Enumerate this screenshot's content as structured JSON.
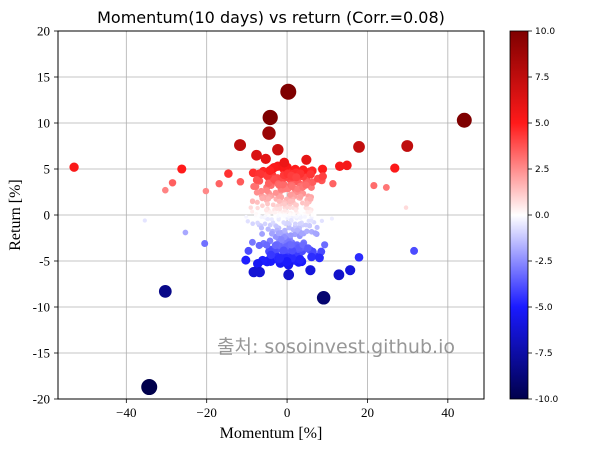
{
  "chart_data": {
    "type": "scatter",
    "title": "Momentum(10 days) vs return (Corr.=0.08)",
    "xlabel": "Momentum [%]",
    "ylabel": "Return [%]",
    "xlim": [
      -57,
      49
    ],
    "ylim": [
      -20,
      20
    ],
    "x_ticks": [
      -40,
      -20,
      0,
      20,
      40
    ],
    "x_tick_labels": [
      "−40",
      "−20",
      "0",
      "20",
      "40"
    ],
    "y_ticks": [
      -20,
      -15,
      -10,
      -5,
      0,
      5,
      10,
      15,
      20
    ],
    "y_tick_labels": [
      "-20",
      "-15",
      "-10",
      "-5",
      "0",
      "5",
      "10",
      "15",
      "20"
    ],
    "grid": true,
    "colormap": "seismic",
    "color_encoding": "return",
    "size_encoding": "absolute return",
    "colorbar": {
      "range": [
        -10,
        10
      ],
      "ticks": [
        10,
        7.5,
        5,
        2.5,
        0,
        -2.5,
        -5,
        -7.5,
        -10
      ],
      "tick_labels": [
        "10.0",
        "7.5",
        "5.0",
        "2.5",
        "0.0",
        "-2.5",
        "-5.0",
        "-7.5",
        "-10.0"
      ],
      "colors": {
        "low": "#00004c",
        "mid": "#ffffff",
        "high": "#7f0000"
      }
    },
    "watermark": "출처: sosoinvest.github.io",
    "points": [
      {
        "x": 0.3,
        "y": 13.4
      },
      {
        "x": -4.2,
        "y": 10.6
      },
      {
        "x": 44.1,
        "y": 10.3
      },
      {
        "x": -4.5,
        "y": 8.9
      },
      {
        "x": -11.7,
        "y": 7.6
      },
      {
        "x": -2.3,
        "y": 7.1
      },
      {
        "x": 17.9,
        "y": 7.4
      },
      {
        "x": 29.9,
        "y": 7.5
      },
      {
        "x": -7.6,
        "y": 6.5
      },
      {
        "x": -5.3,
        "y": 6.1
      },
      {
        "x": 4.8,
        "y": 6.0
      },
      {
        "x": -0.7,
        "y": 5.7
      },
      {
        "x": 14.9,
        "y": 5.4
      },
      {
        "x": -53.0,
        "y": 5.2
      },
      {
        "x": -26.2,
        "y": 5.0
      },
      {
        "x": 26.8,
        "y": 5.1
      },
      {
        "x": 13.1,
        "y": 5.3
      },
      {
        "x": -14.6,
        "y": 4.5
      },
      {
        "x": 2.3,
        "y": 4.1
      },
      {
        "x": 8.9,
        "y": 4.2
      },
      {
        "x": -28.5,
        "y": 3.5
      },
      {
        "x": -16.9,
        "y": 3.4
      },
      {
        "x": 21.6,
        "y": 3.2
      },
      {
        "x": 24.7,
        "y": 3.0
      },
      {
        "x": -30.3,
        "y": 2.7
      },
      {
        "x": -20.2,
        "y": 2.6
      },
      {
        "x": -8.3,
        "y": 3.1
      },
      {
        "x": 11.4,
        "y": 3.4
      },
      {
        "x": 29.6,
        "y": 0.8
      },
      {
        "x": -35.4,
        "y": -0.6
      },
      {
        "x": -25.3,
        "y": -1.9
      },
      {
        "x": -20.5,
        "y": -3.1
      },
      {
        "x": -9.6,
        "y": -3.9
      },
      {
        "x": -7.3,
        "y": -5.3
      },
      {
        "x": -8.3,
        "y": -6.2
      },
      {
        "x": -6.8,
        "y": -6.2
      },
      {
        "x": 0.4,
        "y": -6.5
      },
      {
        "x": 5.8,
        "y": -6.0
      },
      {
        "x": 12.9,
        "y": -6.5
      },
      {
        "x": 15.7,
        "y": -6.0
      },
      {
        "x": 17.9,
        "y": -4.6
      },
      {
        "x": 31.6,
        "y": -3.9
      },
      {
        "x": -30.3,
        "y": -8.3
      },
      {
        "x": 9.1,
        "y": -9.0
      },
      {
        "x": -34.3,
        "y": -18.7
      }
    ],
    "cluster_note": "dense cloud of ~400 additional points concentrated between roughly x -22..22 and y -6..6"
  }
}
